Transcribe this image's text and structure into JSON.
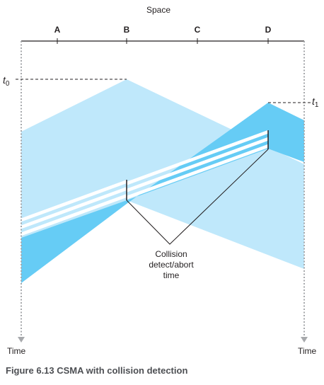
{
  "diagram": {
    "space_label": "Space",
    "nodes": [
      "A",
      "B",
      "C",
      "D"
    ],
    "t0_base": "t",
    "t0_sub": "0",
    "t1_base": "t",
    "t1_sub": "1",
    "time_left": "Time",
    "time_right": "Time",
    "annotation_lines": [
      "Collision",
      "detect/abort",
      "time"
    ]
  },
  "colors": {
    "light_blue": "#bfe8fb",
    "dark_blue": "#66ccf5",
    "stripe": "#ffffff",
    "line": "#231f20",
    "dotted": "#a7a9ac"
  },
  "caption": "Figure 6.13 CSMA with collision detection"
}
